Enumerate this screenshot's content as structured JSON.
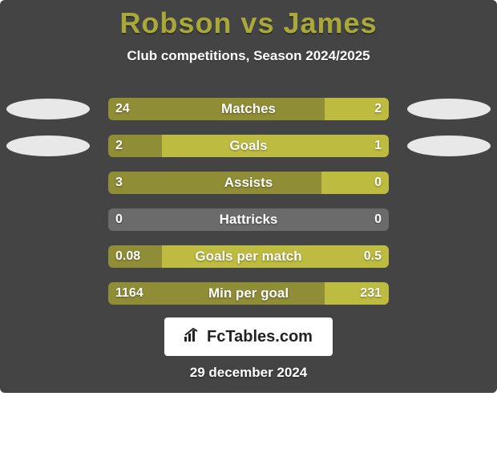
{
  "title": "Robson vs James",
  "subtitle": "Club competitions, Season 2024/2025",
  "date": "29 december 2024",
  "brand": "FcTables.com",
  "colors": {
    "background": "#444444",
    "accent": "#a9a93a",
    "left_bar": "#8f8d36",
    "right_bar": "#bdbb40",
    "neutral_bar": "#6b6b6b",
    "text": "#ffffff"
  },
  "rows": [
    {
      "label": "Matches",
      "left_val": "24",
      "right_val": "2",
      "left_pct": 77,
      "right_pct": 23,
      "show_players": true
    },
    {
      "label": "Goals",
      "left_val": "2",
      "right_val": "1",
      "left_pct": 19,
      "right_pct": 81,
      "show_players": true
    },
    {
      "label": "Assists",
      "left_val": "3",
      "right_val": "0",
      "left_pct": 76,
      "right_pct": 24,
      "show_players": false
    },
    {
      "label": "Hattricks",
      "left_val": "0",
      "right_val": "0",
      "left_pct": 0,
      "right_pct": 0,
      "show_players": false
    },
    {
      "label": "Goals per match",
      "left_val": "0.08",
      "right_val": "0.5",
      "left_pct": 19,
      "right_pct": 81,
      "show_players": false
    },
    {
      "label": "Min per goal",
      "left_val": "1164",
      "right_val": "231",
      "left_pct": 77,
      "right_pct": 23,
      "show_players": false
    }
  ]
}
